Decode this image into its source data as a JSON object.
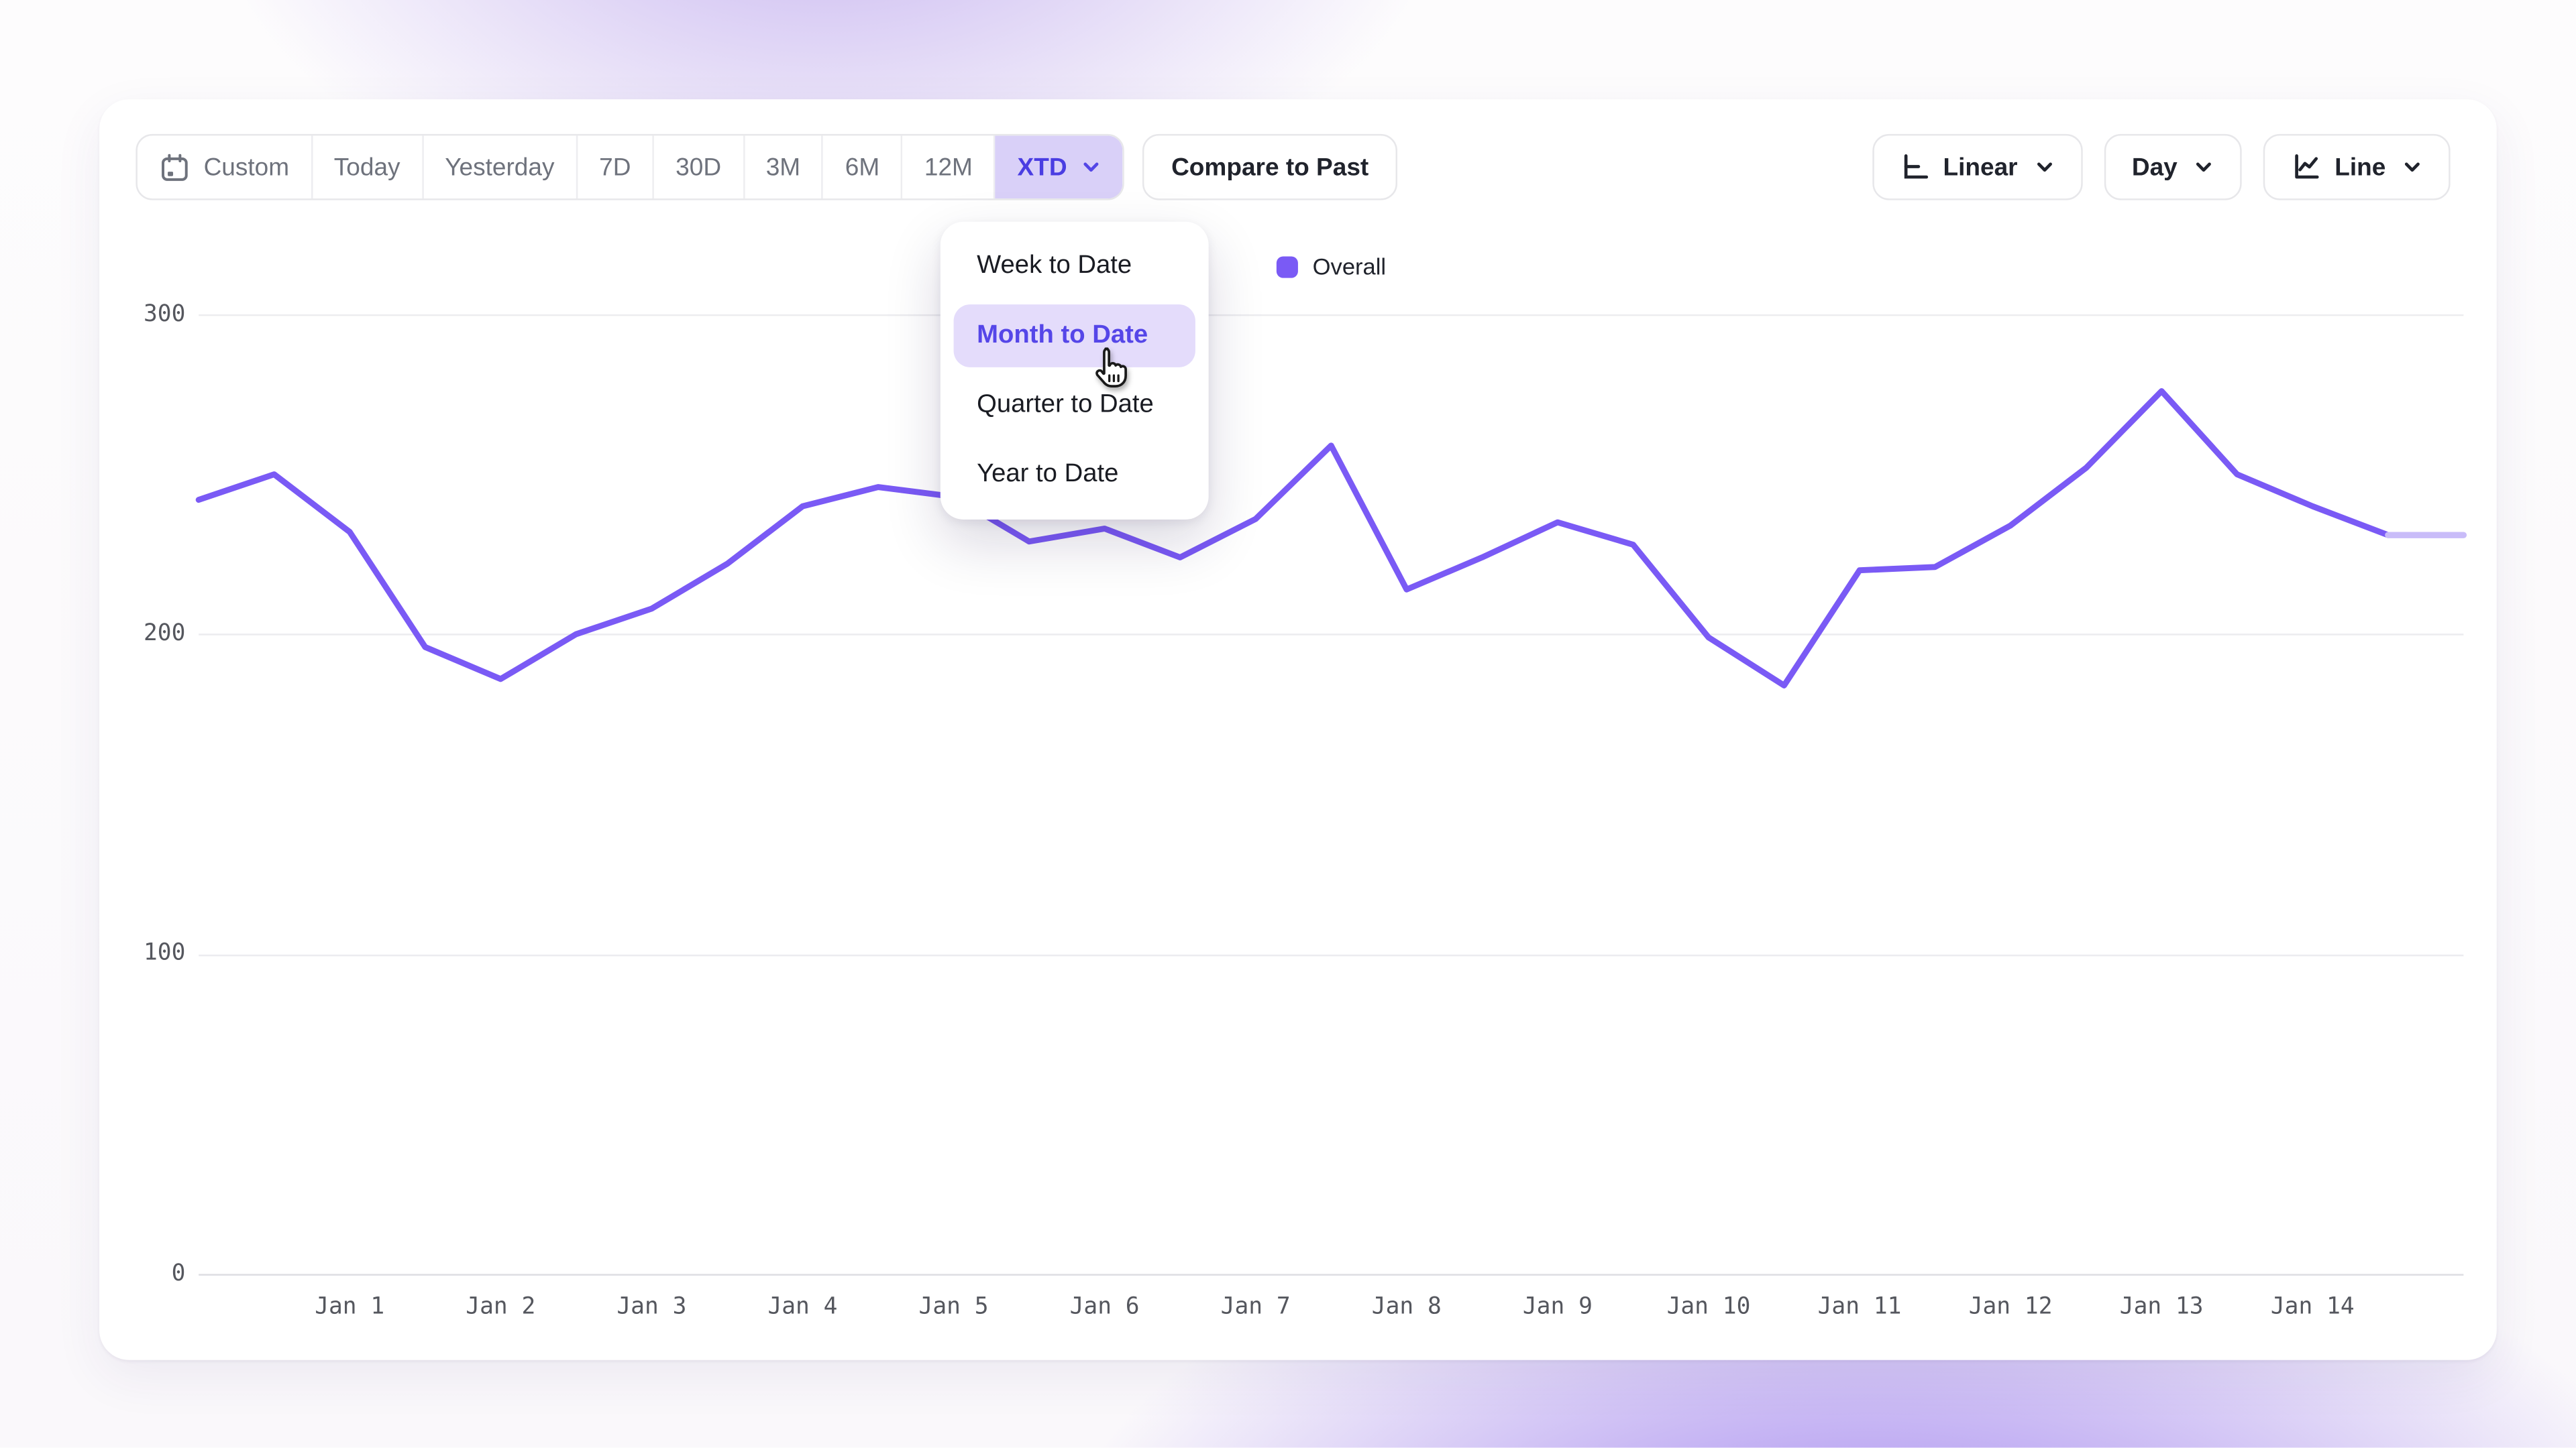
{
  "toolbar": {
    "ranges": [
      "Custom",
      "Today",
      "Yesterday",
      "7D",
      "30D",
      "3M",
      "6M",
      "12M",
      "XTD"
    ],
    "active_range": "XTD",
    "compare_label": "Compare to Past",
    "scale_label": "Linear",
    "granularity_label": "Day",
    "chart_type_label": "Line"
  },
  "menu": {
    "items": [
      {
        "label": "Week to Date",
        "active": false
      },
      {
        "label": "Month to Date",
        "active": true
      },
      {
        "label": "Quarter to Date",
        "active": false
      },
      {
        "label": "Year to Date",
        "active": false
      }
    ]
  },
  "colors": {
    "accent_line": "#7A5AF5",
    "accent_line_faded": "#C9BCF9",
    "active_segment_bg": "#D9D0F8",
    "active_segment_text": "#4A3DE2",
    "menu_active_bg": "#E4DCFB",
    "menu_active_text": "#5546E8"
  },
  "chart_data": {
    "type": "line",
    "title": "",
    "xlabel": "",
    "ylabel": "",
    "categories": [
      "Jan 1",
      "Jan 2",
      "Jan 3",
      "Jan 4",
      "Jan 5",
      "Jan 6",
      "Jan 7",
      "Jan 8",
      "Jan 9",
      "Jan 10",
      "Jan 11",
      "Jan 12",
      "Jan 13",
      "Jan 14"
    ],
    "label_start_index": 2,
    "label_every": 2,
    "series": [
      {
        "name": "Overall",
        "color": "#7A5AF5",
        "faded_color": "#C9BCF9",
        "values": [
          242,
          250,
          232,
          196,
          186,
          200,
          208,
          222,
          240,
          246,
          243,
          229,
          233,
          224,
          236,
          259,
          214,
          224,
          235,
          228,
          199,
          184,
          220,
          221,
          234,
          252,
          276,
          250,
          240,
          231,
          231
        ],
        "faded_from_index": 29
      }
    ],
    "x_unit": "half-day steps, two points per labeled day",
    "ylim": [
      0,
      300
    ],
    "yticks": [
      0,
      100,
      200,
      300
    ],
    "grid": "horizontal",
    "legend_position": "top-center"
  }
}
